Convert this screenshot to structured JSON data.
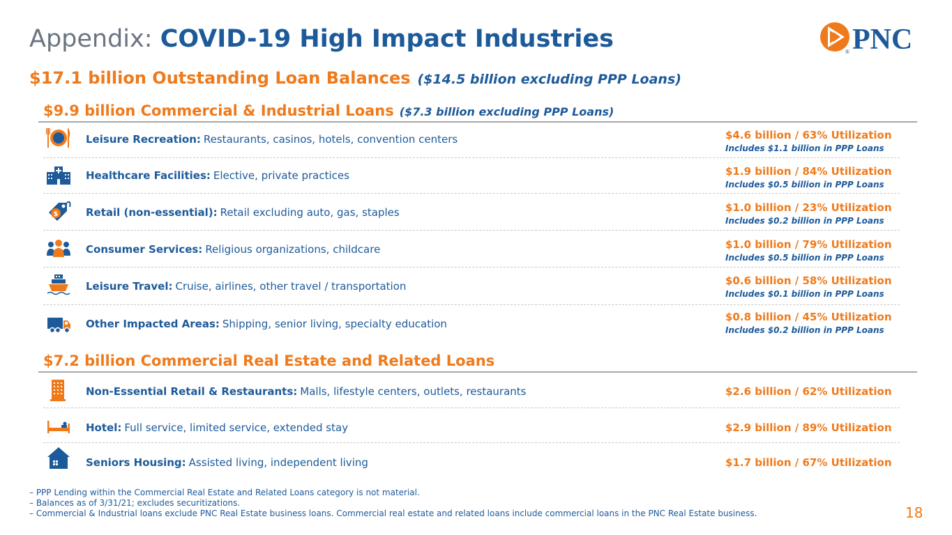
{
  "title": {
    "prefix": "Appendix:",
    "main": "COVID-19 High Impact Industries"
  },
  "logo": {
    "text": "PNC",
    "registered": "®",
    "icon": "pnc-arrow-logo-icon"
  },
  "subtitle": {
    "main": "$17.1 billion Outstanding Loan Balances",
    "note": "($14.5 billion excluding PPP Loans)"
  },
  "commercial_industrial": {
    "title": "$9.9 billion Commercial & Industrial Loans",
    "note": "($7.3 billion excluding PPP Loans)",
    "rows": [
      {
        "icon": "dining-plate-icon",
        "name": "Leisure Recreation:",
        "desc": "Restaurants, casinos, hotels, convention centers",
        "amount": "$4.6 billion / 63% Utilization",
        "ppp": "Includes $1.1 billion in PPP Loans"
      },
      {
        "icon": "hospital-building-icon",
        "name": "Healthcare Facilities:",
        "desc": "Elective, private practices",
        "amount": "$1.9 billion / 84% Utilization",
        "ppp": "Includes $0.5 billion in PPP Loans"
      },
      {
        "icon": "price-tag-icon",
        "name": "Retail (non-essential):",
        "desc": "Retail excluding auto, gas, staples",
        "amount": "$1.0 billion / 23% Utilization",
        "ppp": "Includes $0.2 billion in PPP Loans"
      },
      {
        "icon": "people-group-icon",
        "name": "Consumer Services:",
        "desc": "Religious organizations, childcare",
        "amount": "$1.0 billion / 79% Utilization",
        "ppp": "Includes $0.5 billion in PPP Loans"
      },
      {
        "icon": "cruise-ship-icon",
        "name": "Leisure Travel:",
        "desc": "Cruise, airlines, other travel / transportation",
        "amount": "$0.6 billion / 58% Utilization",
        "ppp": "Includes $0.1 billion in PPP Loans"
      },
      {
        "icon": "delivery-truck-icon",
        "name": "Other Impacted Areas:",
        "desc": "Shipping, senior living, specialty education",
        "amount": "$0.8 billion / 45% Utilization",
        "ppp": "Includes $0.2 billion in PPP Loans"
      }
    ]
  },
  "commercial_real_estate": {
    "title": "$7.2 billion Commercial Real Estate and Related Loans",
    "rows": [
      {
        "icon": "office-building-icon",
        "name": "Non-Essential Retail & Restaurants:",
        "desc": "Malls, lifestyle centers, outlets, restaurants",
        "amount": "$2.6 billion / 62% Utilization"
      },
      {
        "icon": "hotel-bed-icon",
        "name": "Hotel:",
        "desc": "Full service, limited service, extended stay",
        "amount": "$2.9 billion / 89% Utilization"
      },
      {
        "icon": "house-icon",
        "name": "Seniors Housing:",
        "desc": "Assisted living, independent living",
        "amount": "$1.7 billion / 67% Utilization"
      }
    ]
  },
  "footnotes": [
    "– PPP Lending within the Commercial Real Estate and Related Loans category is not material.",
    "– Balances as of 3/31/21; excludes securitizations.",
    "– Commercial & Industrial loans exclude PNC Real Estate business loans. Commercial real estate and related loans include commercial loans in the PNC Real Estate business."
  ],
  "page_number": "18",
  "colors": {
    "blue": "#1d5a9a",
    "orange": "#ef7a1b",
    "gray": "#6b7480"
  }
}
